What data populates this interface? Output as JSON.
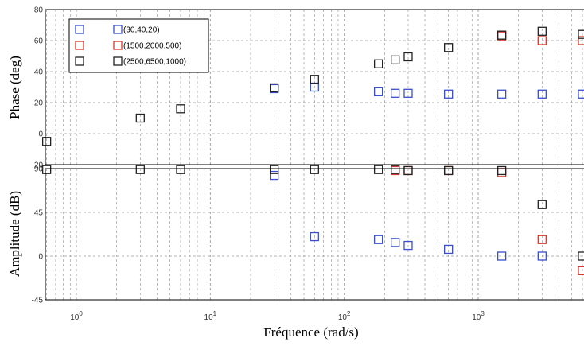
{
  "colors": {
    "blue": "#3a4fd0",
    "red": "#d9352a",
    "black": "#222222",
    "grid": "#9a9a9a"
  },
  "chart_data": [
    {
      "type": "scatter",
      "panel": "phase",
      "ylabel": "Phase (deg)",
      "xscale": "log",
      "xlim": [
        0.6,
        6000
      ],
      "ylim": [
        -20,
        80
      ],
      "yticks": [
        "-20",
        "0",
        "20",
        "40",
        "60",
        "80"
      ],
      "grid": true,
      "legend": {
        "placement": "top-left",
        "entries": [
          {
            "label": "(30,40,20)",
            "color": "#3a4fd0"
          },
          {
            "label": "(1500,2000,500)",
            "color": "#d9352a"
          },
          {
            "label": "(2500,6500,1000)",
            "color": "#222222"
          }
        ]
      },
      "series": [
        {
          "name": "(30,40,20)",
          "color": "#3a4fd0",
          "x": [
            30,
            60,
            180,
            240,
            300,
            600,
            1500,
            3000,
            6000
          ],
          "y": [
            29,
            30,
            27,
            26,
            26,
            25.5,
            25.5,
            25.5,
            25.5
          ]
        },
        {
          "name": "(1500,2000,500)",
          "color": "#d9352a",
          "x": [
            1500,
            3000,
            6000
          ],
          "y": [
            63,
            60,
            60
          ]
        },
        {
          "name": "(2500,6500,1000)",
          "color": "#222222",
          "x": [
            0.6,
            3,
            6,
            30,
            60,
            180,
            240,
            300,
            600,
            1500,
            3000,
            6000
          ],
          "y": [
            -5,
            10,
            16,
            29.5,
            35,
            45,
            47.5,
            49.5,
            55.5,
            63.5,
            66,
            64
          ]
        }
      ]
    },
    {
      "type": "scatter",
      "panel": "amplitude",
      "xlabel": "Fréquence (rad/s)",
      "ylabel": "Amplitude (dB)",
      "xscale": "log",
      "xlim": [
        0.6,
        6000
      ],
      "ylim": [
        -45,
        90
      ],
      "yticks": [
        "-45",
        "0",
        "45",
        "90"
      ],
      "xticks": [
        {
          "value": 1,
          "base": "10",
          "exp": "0"
        },
        {
          "value": 10,
          "base": "10",
          "exp": "1"
        },
        {
          "value": 100,
          "base": "10",
          "exp": "2"
        },
        {
          "value": 1000,
          "base": "10",
          "exp": "3"
        }
      ],
      "grid": true,
      "series": [
        {
          "name": "(30,40,20)",
          "color": "#3a4fd0",
          "x": [
            30,
            60,
            180,
            240,
            300,
            600,
            1500,
            3000
          ],
          "y": [
            83,
            20,
            17,
            14,
            11,
            7,
            0,
            0
          ]
        },
        {
          "name": "(1500,2000,500)",
          "color": "#d9352a",
          "x": [
            240,
            300,
            600,
            1500,
            3000,
            6000
          ],
          "y": [
            88,
            88,
            88,
            86,
            17,
            -15
          ]
        },
        {
          "name": "(2500,6500,1000)",
          "color": "#222222",
          "x": [
            0.6,
            3,
            6,
            30,
            60,
            180,
            240,
            300,
            600,
            1500,
            3000,
            6000
          ],
          "y": [
            89,
            89,
            89,
            89,
            89,
            89,
            89,
            88,
            88,
            88,
            53,
            0
          ]
        }
      ]
    }
  ]
}
